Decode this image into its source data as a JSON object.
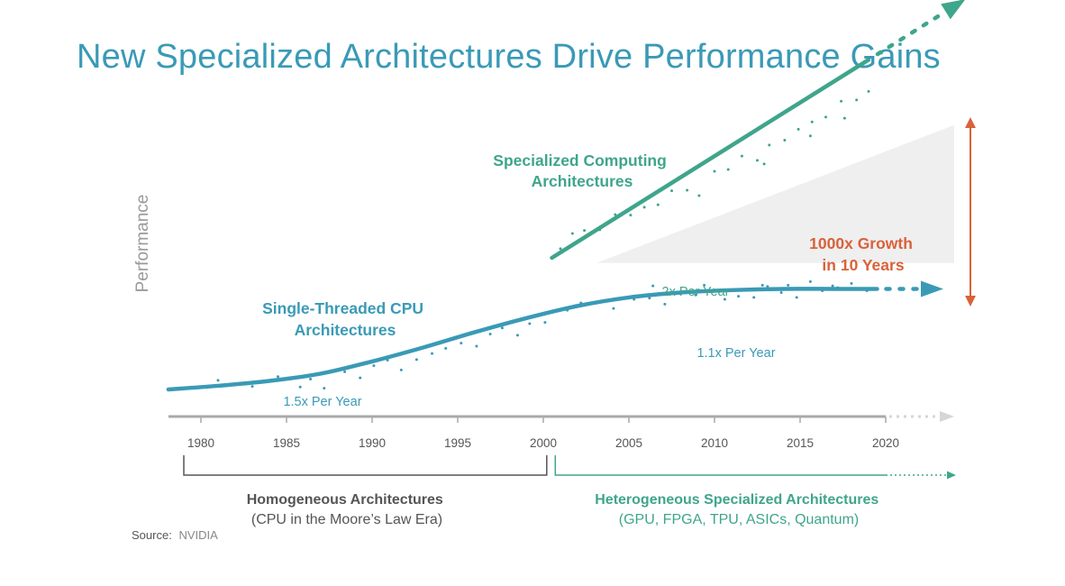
{
  "title": "New Specialized Architectures Drive Performance Gains",
  "chart_data": {
    "type": "line",
    "title": "New Specialized Architectures Drive Performance Gains",
    "ylabel": "Performance",
    "xlabel": "",
    "xlim": [
      1978,
      2024
    ],
    "ylim": [
      0,
      10
    ],
    "x_ticks": [
      1980,
      1985,
      1990,
      1995,
      2000,
      2005,
      2010,
      2015,
      2020
    ],
    "x_tick_labels": [
      "1980",
      "1985",
      "1990",
      "1995",
      "2000",
      "2005",
      "2010",
      "2015",
      "2020"
    ],
    "series": [
      {
        "name": "Single-Threaded CPU Architectures",
        "label_lines": [
          "Single-Threaded CPU",
          "Architectures"
        ],
        "color": "#3a9ab6",
        "x": [
          1978.1,
          1981,
          1984,
          1987,
          1990,
          1993,
          1996,
          1999,
          2002,
          2005,
          2008,
          2011,
          2014,
          2017,
          2019.5
        ],
        "y": [
          0.0,
          0.12,
          0.28,
          0.52,
          0.92,
          1.38,
          1.88,
          2.34,
          2.74,
          3.02,
          3.18,
          3.26,
          3.3,
          3.3,
          3.3
        ],
        "extension_to": 2022,
        "rate_label": "1.5x Per Year",
        "rate_label_late": "1.1x Per Year"
      },
      {
        "name": "Specialized Computing Architectures",
        "label_lines": [
          "Specialized Computing",
          "Architectures"
        ],
        "color": "#3fa58b",
        "x": [
          2000.5,
          2019
        ],
        "y": [
          4.32,
          10.82
        ],
        "extension_to": 2023.5,
        "rate_label": "2x Per Year"
      }
    ],
    "scatter_points": {
      "cpu": [
        [
          1981,
          0.3
        ],
        [
          1983,
          0.1
        ],
        [
          1984.5,
          0.42
        ],
        [
          1985.8,
          0.08
        ],
        [
          1986.4,
          0.34
        ],
        [
          1987.2,
          0.04
        ],
        [
          1988.4,
          0.58
        ],
        [
          1989.3,
          0.38
        ],
        [
          1990.1,
          0.78
        ],
        [
          1990.9,
          0.96
        ],
        [
          1991.7,
          0.64
        ],
        [
          1992.6,
          0.98
        ],
        [
          1993.5,
          1.18
        ],
        [
          1994.3,
          1.35
        ],
        [
          1995.2,
          1.52
        ],
        [
          1996.1,
          1.42
        ],
        [
          1996.9,
          1.82
        ],
        [
          1997.6,
          2.02
        ],
        [
          1998.5,
          1.78
        ],
        [
          1999.2,
          2.16
        ],
        [
          2000.1,
          2.2
        ],
        [
          2000.5,
          2.54
        ],
        [
          2001.4,
          2.6
        ],
        [
          2002.2,
          2.84
        ],
        [
          2003.1,
          2.86
        ],
        [
          2004.1,
          2.66
        ],
        [
          2005.3,
          2.96
        ],
        [
          2006.2,
          3.0
        ],
        [
          2007.1,
          2.8
        ],
        [
          2008.0,
          3.14
        ],
        [
          2008.9,
          3.1
        ],
        [
          2009.8,
          3.22
        ],
        [
          2010.6,
          2.96
        ],
        [
          2011.4,
          3.06
        ],
        [
          2012.3,
          3.02
        ],
        [
          2013.1,
          3.38
        ],
        [
          2013.9,
          3.18
        ],
        [
          2014.8,
          3.02
        ],
        [
          2015.6,
          3.54
        ],
        [
          2016.3,
          3.24
        ],
        [
          2017.2,
          3.34
        ],
        [
          2018,
          3.48
        ],
        [
          2018.9,
          3.24
        ],
        [
          2006.4,
          3.4
        ],
        [
          2009.4,
          3.42
        ],
        [
          2012.8,
          3.42
        ],
        [
          2014.3,
          3.42
        ],
        [
          2016.9,
          3.4
        ]
      ],
      "specialized": [
        [
          2001,
          4.62
        ],
        [
          2001.7,
          5.12
        ],
        [
          2002.4,
          5.22
        ],
        [
          2003.3,
          5.24
        ],
        [
          2004.2,
          5.74
        ],
        [
          2005.1,
          5.72
        ],
        [
          2005.9,
          5.98
        ],
        [
          2006.7,
          6.06
        ],
        [
          2007.5,
          6.52
        ],
        [
          2008.4,
          6.54
        ],
        [
          2009.1,
          6.36
        ],
        [
          2010,
          7.16
        ],
        [
          2010.8,
          7.22
        ],
        [
          2011.6,
          7.66
        ],
        [
          2012.5,
          7.52
        ],
        [
          2013.2,
          8.02
        ],
        [
          2014.1,
          8.18
        ],
        [
          2014.9,
          8.54
        ],
        [
          2015.7,
          8.78
        ],
        [
          2016.5,
          8.94
        ],
        [
          2017.4,
          9.46
        ],
        [
          2018.3,
          9.5
        ],
        [
          2019,
          9.78
        ],
        [
          2012.9,
          7.4
        ],
        [
          2015.6,
          8.32
        ],
        [
          2017.6,
          8.9
        ]
      ]
    },
    "annotations": {
      "growth_label_lines": [
        "1000x Growth",
        "in 10 Years"
      ],
      "growth_color": "#d9623a",
      "triangle_color": "#efefef",
      "axis_color": "#a9a9a9",
      "homogeneous_label_lines": [
        "Homogeneous Architectures",
        "(CPU in the Moore’s Law Era)"
      ],
      "homogeneous_range": [
        1979,
        2000.2
      ],
      "heterogeneous_label_lines": [
        "Heterogeneous Specialized Architectures",
        "(GPU, FPGA, TPU, ASICs, Quantum)"
      ],
      "heterogeneous_range": [
        2000.7,
        2024
      ]
    },
    "source_label": "Source:",
    "source_name": "NVIDIA"
  }
}
